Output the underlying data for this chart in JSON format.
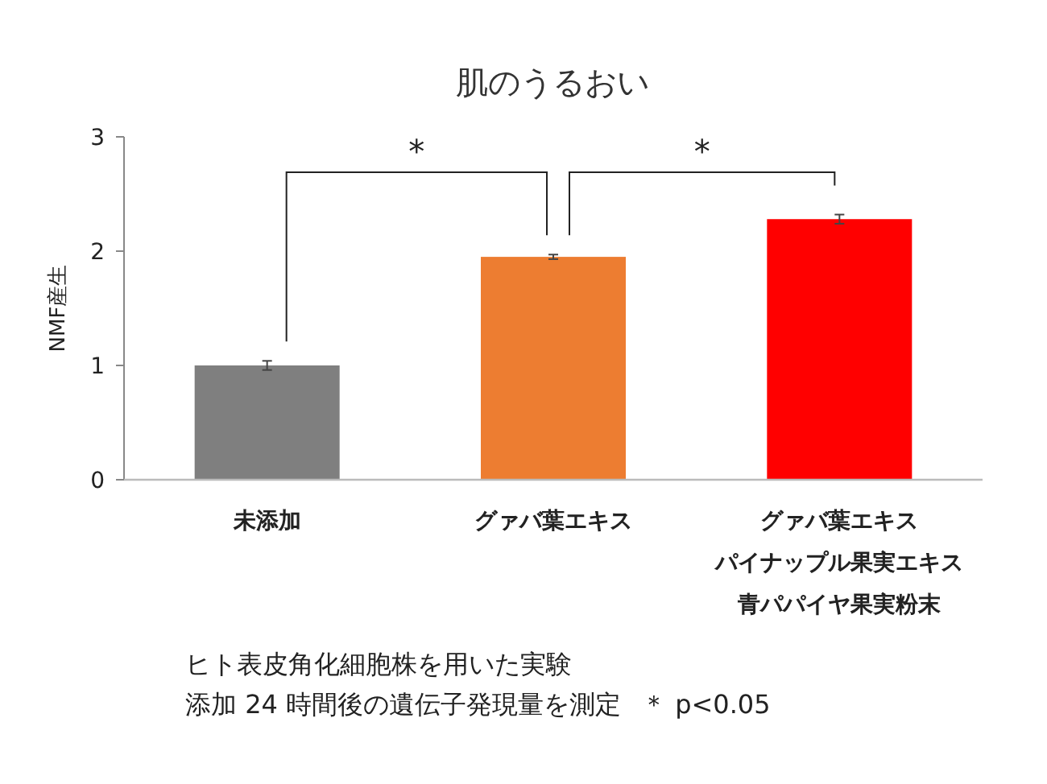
{
  "chart_data": {
    "type": "bar",
    "title": "肌のうるおい",
    "ylabel": "NMF産生",
    "categories": [
      "未添加",
      "グァバ葉エキス",
      "グァバ葉エキスパイナップル果実エキス青パパイヤ果実粉末"
    ],
    "values": [
      1.0,
      1.95,
      2.28
    ],
    "errors": [
      0.04,
      0.02,
      0.04
    ],
    "colors": [
      "#7f7f7f",
      "#ed7d31",
      "#ff0000"
    ],
    "ylim": [
      0,
      3
    ],
    "yticks": [
      0,
      1,
      2,
      3
    ],
    "grid": false,
    "annotations": [
      "*",
      "*",
      "ヒト表皮角化細胞株を用いた実験",
      "添加 24 時間後の遺伝子発現量を測定",
      "＊ p<0.05"
    ]
  }
}
